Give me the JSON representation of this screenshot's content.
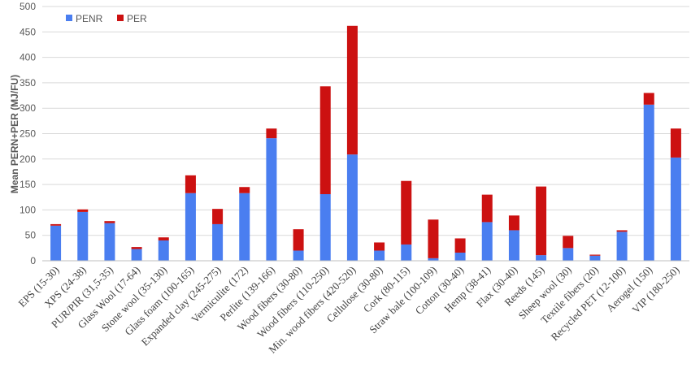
{
  "chart_data": {
    "type": "bar",
    "stacked": true,
    "ylabel": "Mean PERN+PER (MJ/FU)",
    "ylim": [
      0,
      500
    ],
    "yticks": [
      0,
      50,
      100,
      150,
      200,
      250,
      300,
      350,
      400,
      450,
      500
    ],
    "grid": true,
    "legend_position": "top-left",
    "categories": [
      "EPS (15-30)",
      "XPS (24-38)",
      "PUR/PIR (31,5-35)",
      "Glass Wool (17-64)",
      "Stone wool (35-130)",
      "Glass foam (100-165)",
      "Expanded clay (245-275)",
      "Vermiculite (172)",
      "Perlite (139-166)",
      "Wood fibers (30-80)",
      "Wood fibers (110-250)",
      "Min. wood fibers (420-520)",
      "Cellulose (30-80)",
      "Cork (80-115)",
      "Straw bale (100-109)",
      "Cotton (30-40)",
      "Hemp (38-41)",
      "Flax (30-40)",
      "Reeds (145)",
      "Sheep wool (30)",
      "Textile fibers (20)",
      "Recycled PET (12-100)",
      "Aerogel (150)",
      "VIP (180-250)"
    ],
    "series": [
      {
        "name": "PENR",
        "color": "#4a7ef0",
        "values": [
          69,
          96,
          74,
          23,
          40,
          133,
          72,
          133,
          241,
          20,
          131,
          209,
          20,
          32,
          5,
          16,
          76,
          60,
          11,
          25,
          10,
          57,
          307,
          203
        ]
      },
      {
        "name": "PER",
        "color": "#cc1111",
        "values": [
          3,
          5,
          4,
          4,
          6,
          35,
          30,
          12,
          19,
          42,
          212,
          253,
          16,
          125,
          76,
          28,
          54,
          29,
          135,
          24,
          2,
          3,
          23,
          57
        ]
      }
    ]
  }
}
